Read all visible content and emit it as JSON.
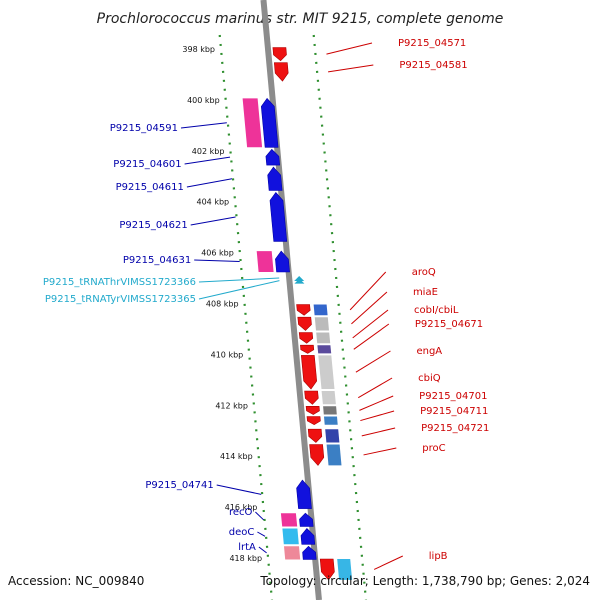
{
  "title": "Prochlorococcus marinus str. MIT 9215, complete genome",
  "footer": {
    "accession": "Accession: NC_009840",
    "topology": "Topology: circular; Length: 1,738,790 bp; Genes: 2,024"
  },
  "colors": {
    "backbone": "#8c8c8c",
    "dots": "#2f8f2f",
    "forward_label": "#cc0000",
    "reverse_label": "#0000aa",
    "trna_label": "#22aacc"
  },
  "ticks": [
    {
      "kbp": 398,
      "label": "398 kbp"
    },
    {
      "kbp": 400,
      "label": "400 kbp"
    },
    {
      "kbp": 402,
      "label": "402 kbp"
    },
    {
      "kbp": 404,
      "label": "404 kbp"
    },
    {
      "kbp": 406,
      "label": "406 kbp"
    },
    {
      "kbp": 408,
      "label": "408 kbp"
    },
    {
      "kbp": 410,
      "label": "410 kbp"
    },
    {
      "kbp": 412,
      "label": "412 kbp"
    },
    {
      "kbp": 414,
      "label": "414 kbp"
    },
    {
      "kbp": 416,
      "label": "416 kbp"
    },
    {
      "kbp": 418,
      "label": "418 kbp"
    }
  ],
  "genes_forward": [
    {
      "label": "P9215_04571",
      "start": 397.9,
      "end": 398.5
    },
    {
      "label": "P9215_04581",
      "start": 398.5,
      "end": 399.3
    },
    {
      "label": "aroQ",
      "start": 408.0,
      "end": 408.5
    },
    {
      "label": "miaE",
      "start": 408.5,
      "end": 409.1
    },
    {
      "label": "cobI/cbiL",
      "start": 409.1,
      "end": 409.6
    },
    {
      "label": "P9215_04671",
      "start": 409.6,
      "end": 410.0
    },
    {
      "label": "engA",
      "start": 410.0,
      "end": 411.4
    },
    {
      "label": "cbiQ",
      "start": 411.4,
      "end": 412.0
    },
    {
      "label": "P9215_04701",
      "start": 412.0,
      "end": 412.4
    },
    {
      "label": "P9215_04711",
      "start": 412.4,
      "end": 412.8
    },
    {
      "label": "P9215_04721",
      "start": 412.9,
      "end": 413.5
    },
    {
      "label": "proC",
      "start": 413.5,
      "end": 414.4
    },
    {
      "label": "lipB",
      "start": 418.0,
      "end": 418.9
    }
  ],
  "genes_reverse": [
    {
      "label": "P9215_04591",
      "start": 399.9,
      "end": 401.9
    },
    {
      "label": "P9215_04601",
      "start": 401.9,
      "end": 402.6
    },
    {
      "label": "P9215_04611",
      "start": 402.6,
      "end": 403.6
    },
    {
      "label": "P9215_04621",
      "start": 403.6,
      "end": 405.6
    },
    {
      "label": "P9215_04631",
      "start": 405.9,
      "end": 406.8
    },
    {
      "label": "P9215_04741",
      "start": 414.9,
      "end": 416.1
    },
    {
      "label": "recO",
      "start": 416.2,
      "end": 416.8
    },
    {
      "label": "deoC",
      "start": 416.8,
      "end": 417.5
    },
    {
      "label": "lrtA",
      "start": 417.5,
      "end": 418.1
    }
  ],
  "trnas": [
    {
      "label": "P9215_tRNAThrVIMSS1723366",
      "position": 407.0
    },
    {
      "label": "P9215_tRNATyrVIMSS1723365",
      "position": 407.1
    }
  ]
}
